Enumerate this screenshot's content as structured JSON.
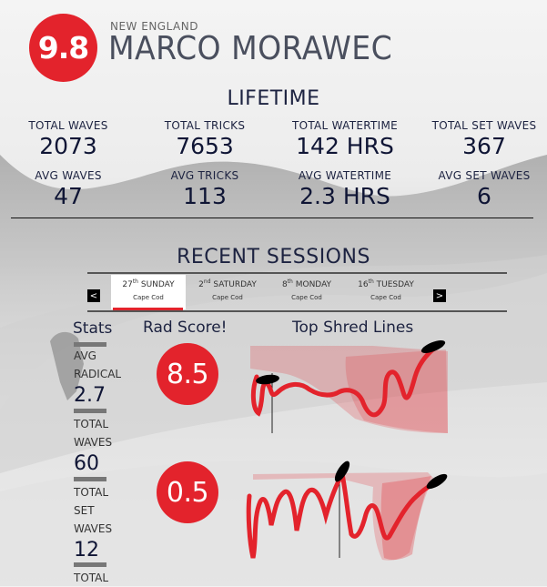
{
  "profile": {
    "score": "9.8",
    "region": "NEW ENGLAND",
    "name": "MARCO MORAWEC"
  },
  "lifetime": {
    "title": "LIFETIME",
    "stats": [
      {
        "label": "TOTAL WAVES",
        "value": "2073"
      },
      {
        "label": "TOTAL TRICKS",
        "value": "7653"
      },
      {
        "label": "TOTAL WATERTIME",
        "value": "142 HRS"
      },
      {
        "label": "TOTAL SET WAVES",
        "value": "367"
      },
      {
        "label": "AVG WAVES",
        "value": "47"
      },
      {
        "label": "AVG TRICKS",
        "value": "113"
      },
      {
        "label": "AVG WATERTIME",
        "value": "2.3 HRS"
      },
      {
        "label": "AVG SET WAVES",
        "value": "6"
      }
    ]
  },
  "recent": {
    "title": "RECENT SESSIONS",
    "prev_label": "<",
    "next_label": ">",
    "sessions": [
      {
        "num": "27",
        "suffix": "th",
        "day": "SUNDAY",
        "location": "Cape Cod",
        "active": true
      },
      {
        "num": "2",
        "suffix": "nd",
        "day": "SATURDAY",
        "location": "Cape Cod",
        "active": false
      },
      {
        "num": "8",
        "suffix": "th",
        "day": "MONDAY",
        "location": "Cape Cod",
        "active": false
      },
      {
        "num": "16",
        "suffix": "th",
        "day": "TUESDAY",
        "location": "Cape Cod",
        "active": false
      }
    ]
  },
  "detail": {
    "stats_title": "Stats",
    "rad_title": "Rad Score!",
    "lines_title": "Top Shred Lines",
    "side_stats": [
      {
        "label1": "AVG",
        "label2": "RADICAL",
        "value": "2.7"
      },
      {
        "label1": "TOTAL",
        "label2": "WAVES",
        "value": "60"
      },
      {
        "label1": "TOTAL",
        "label2": "SET",
        "label3": "WAVES",
        "value": "12"
      },
      {
        "label1": "TOTAL"
      }
    ],
    "rad_scores": [
      "8.5",
      "0.5"
    ]
  },
  "colors": {
    "accent": "#e3232c",
    "text": "#1c2240"
  }
}
